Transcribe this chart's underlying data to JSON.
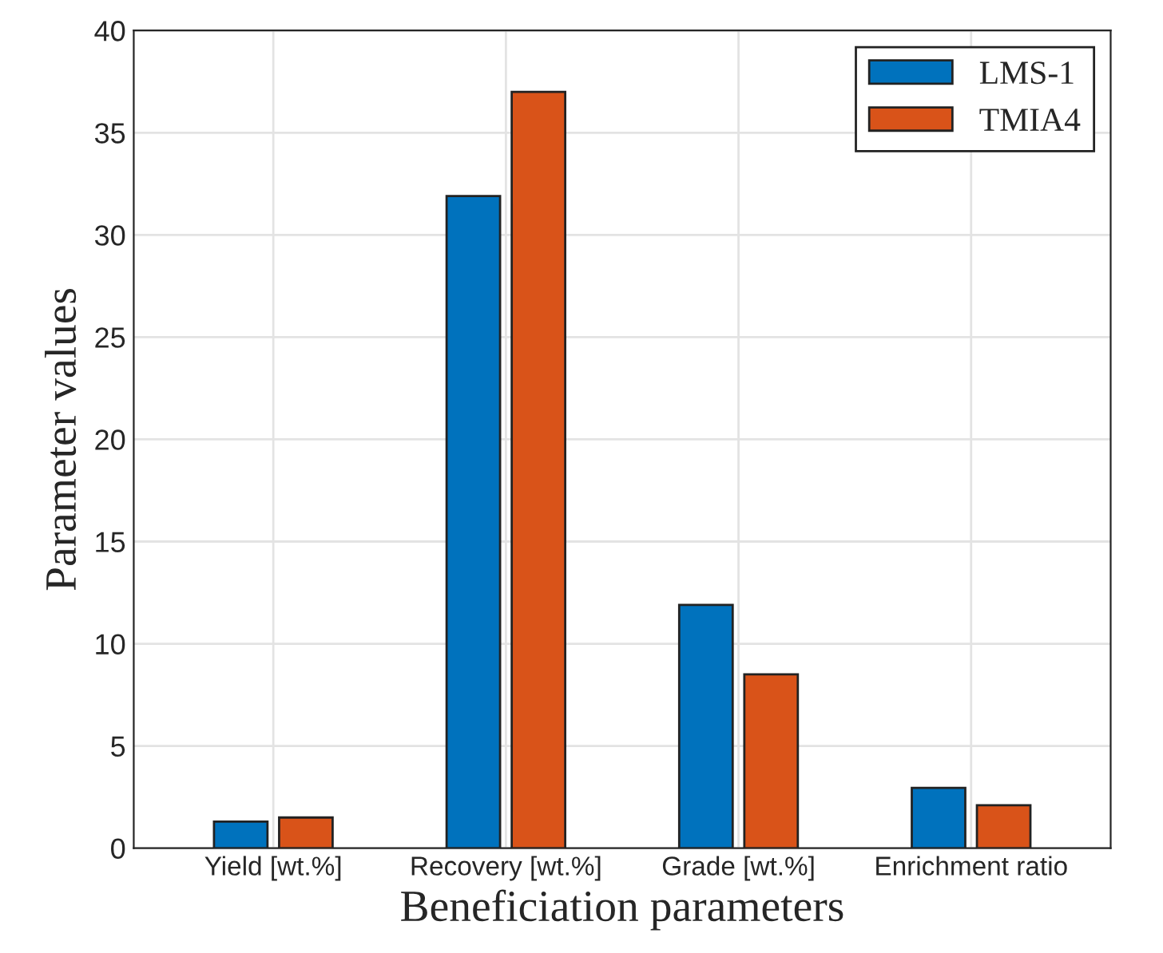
{
  "chart_data": {
    "type": "bar",
    "xlabel": "Beneficiation parameters",
    "ylabel": "Parameter values",
    "categories": [
      "Yield [wt.%]",
      "Recovery [wt.%]",
      "Grade [wt.%]",
      "Enrichment ratio"
    ],
    "series": [
      {
        "name": "LMS-1",
        "color": "#0072bd",
        "values": [
          1.3,
          31.9,
          11.9,
          2.95
        ]
      },
      {
        "name": "TMIA4",
        "color": "#d95319",
        "values": [
          1.5,
          37.0,
          8.5,
          2.1
        ]
      }
    ],
    "ylim": [
      0,
      40
    ],
    "yticks": [
      0,
      5,
      10,
      15,
      20,
      25,
      30,
      35,
      40
    ],
    "grid": true,
    "legend": "top right"
  }
}
